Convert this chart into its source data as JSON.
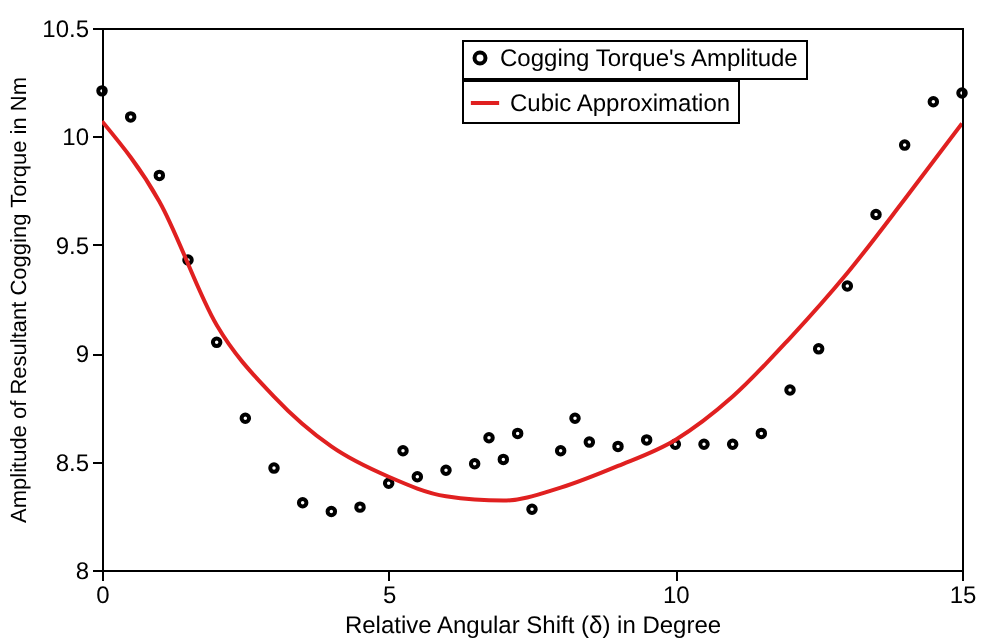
{
  "chart_data": {
    "type": "scatter",
    "xlabel": "Relative Angular Shift (δ) in Degree",
    "ylabel": "Amplitude of Resultant Cogging Torque in Nm",
    "xlim": [
      0,
      15
    ],
    "xticks": [
      0,
      5,
      10,
      15
    ],
    "ylim": [
      8,
      10.5
    ],
    "yticks": [
      8,
      8.5,
      9,
      9.5,
      10,
      10.5
    ],
    "grid": false,
    "legend": "top right",
    "series": [
      {
        "name": "Cogging Torque's Amplitude",
        "marker": "circle",
        "color": "#000000",
        "x": [
          0,
          0.5,
          1,
          1.5,
          2,
          2.5,
          3,
          3.5,
          4,
          4.5,
          5,
          5.25,
          5.5,
          6,
          6.5,
          6.75,
          7,
          7.25,
          7.5,
          8,
          8.25,
          8.5,
          9,
          9.5,
          10,
          10.5,
          11,
          11.5,
          12,
          12.5,
          13,
          13.5,
          14,
          14.5,
          15
        ],
        "values": [
          10.21,
          10.09,
          9.82,
          9.43,
          9.05,
          8.7,
          8.47,
          8.31,
          8.27,
          8.29,
          8.4,
          8.55,
          8.43,
          8.46,
          8.49,
          8.61,
          8.51,
          8.63,
          8.28,
          8.55,
          8.7,
          8.59,
          8.57,
          8.6,
          8.58,
          8.58,
          8.58,
          8.63,
          8.83,
          9.02,
          9.31,
          9.64,
          9.96,
          10.16,
          10.2
        ]
      },
      {
        "name": "Cubic Approximation",
        "type": "line",
        "marker": "none",
        "color": "#e02020",
        "x": [
          0,
          1,
          2,
          3,
          4,
          5,
          6,
          7,
          8,
          9,
          10,
          11,
          12,
          13,
          14,
          15
        ],
        "values": [
          10.07,
          9.7,
          9.13,
          8.8,
          8.57,
          8.43,
          8.34,
          8.32,
          8.38,
          8.48,
          8.6,
          8.8,
          9.07,
          9.37,
          9.71,
          10.06
        ]
      }
    ]
  }
}
